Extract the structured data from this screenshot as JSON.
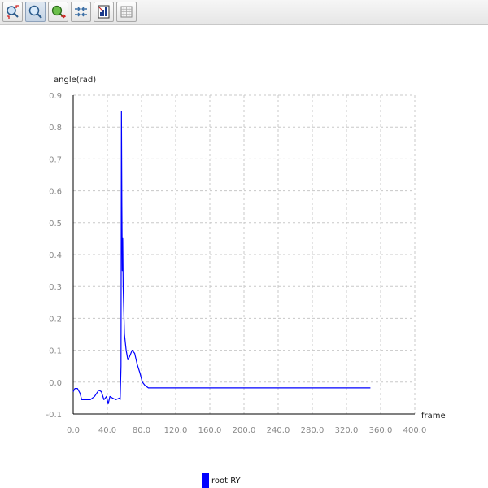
{
  "toolbar": {
    "buttons": [
      {
        "icon": "zoom-fit-icon",
        "active": false
      },
      {
        "icon": "zoom-icon",
        "active": true
      },
      {
        "icon": "pan-icon",
        "active": false
      },
      {
        "icon": "arrows-icon",
        "active": false
      },
      {
        "icon": "save-chart-icon",
        "active": false
      },
      {
        "icon": "grid-icon",
        "active": false
      }
    ]
  },
  "colors": {
    "series": "#0000ff",
    "grid": "#c8c8c8",
    "tick_text": "#888888",
    "axis": "#000000"
  },
  "legend": {
    "label": "root RY"
  },
  "chart_data": {
    "type": "line",
    "title": "",
    "xlabel": "frame",
    "ylabel": "angle(rad)",
    "xlim": [
      0,
      400
    ],
    "ylim": [
      -0.1,
      0.9
    ],
    "x_ticks": [
      "0.0",
      "40.0",
      "80.0",
      "120.0",
      "160.0",
      "200.0",
      "240.0",
      "280.0",
      "320.0",
      "360.0",
      "400.0"
    ],
    "y_ticks": [
      "-0.1",
      "0.0",
      "0.1",
      "0.2",
      "0.3",
      "0.4",
      "0.5",
      "0.6",
      "0.7",
      "0.8",
      "0.9"
    ],
    "grid": true,
    "legend_position": "bottom",
    "series": [
      {
        "name": "root RY",
        "x": [
          0,
          2,
          5,
          8,
          10,
          15,
          20,
          25,
          30,
          33,
          36,
          39,
          41,
          43,
          46,
          50,
          54,
          55,
          56,
          56.5,
          57,
          57.5,
          58,
          58.5,
          59,
          60,
          62,
          64,
          66,
          69,
          72,
          75,
          78,
          81,
          84,
          88,
          92,
          100,
          150,
          200,
          250,
          300,
          348
        ],
        "y": [
          -0.03,
          -0.02,
          -0.02,
          -0.035,
          -0.055,
          -0.055,
          -0.055,
          -0.045,
          -0.025,
          -0.03,
          -0.055,
          -0.045,
          -0.068,
          -0.045,
          -0.05,
          -0.055,
          -0.05,
          -0.055,
          0.05,
          0.85,
          0.55,
          0.35,
          0.45,
          0.3,
          0.25,
          0.15,
          0.1,
          0.07,
          0.08,
          0.1,
          0.09,
          0.055,
          0.03,
          0.0,
          -0.01,
          -0.018,
          -0.018,
          -0.018,
          -0.018,
          -0.018,
          -0.018,
          -0.018,
          -0.018
        ]
      }
    ]
  }
}
